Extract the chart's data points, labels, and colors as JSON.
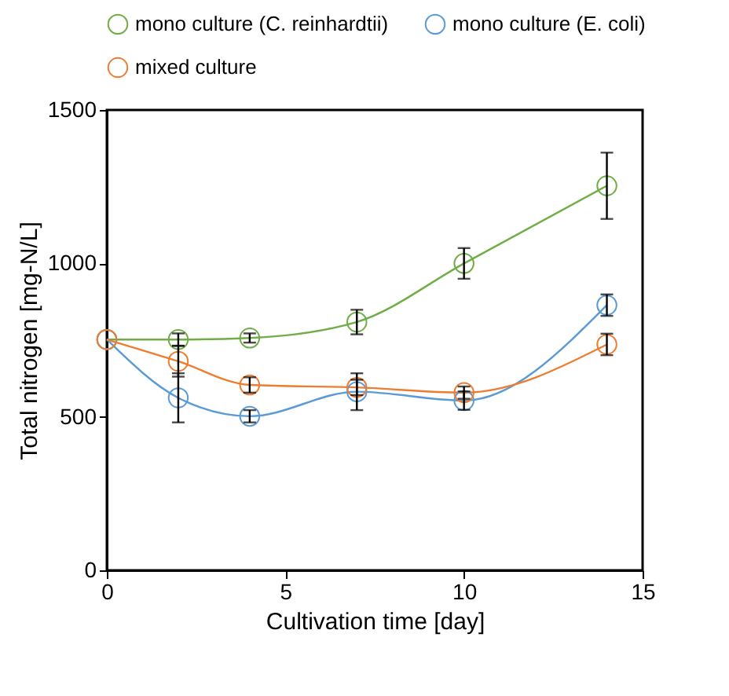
{
  "chart_data": {
    "type": "line",
    "xlabel": "Cultivation time [day]",
    "ylabel": "Total nitrogen [mg-N/L]",
    "xlim": [
      0,
      15
    ],
    "xticks": [
      0,
      5,
      10,
      15
    ],
    "ylim": [
      0,
      1500
    ],
    "yticks": [
      0,
      500,
      1000,
      1500
    ],
    "grid": false,
    "legend": "top",
    "marker": "circle",
    "line_style": "solid",
    "x": [
      0,
      2,
      4,
      7,
      10,
      14
    ],
    "series": [
      {
        "name": "mono culture (C. reinhardtii)",
        "color": "#70ad47",
        "values": [
          752,
          752,
          757,
          809,
          1000,
          1253
        ],
        "errors": [
          null,
          20,
          15,
          40,
          50,
          108
        ]
      },
      {
        "name": "mono culture (E. coli)",
        "color": "#5b9bd5",
        "values": [
          752,
          562,
          502,
          582,
          553,
          864
        ],
        "errors": [
          null,
          80,
          20,
          60,
          30,
          35
        ]
      },
      {
        "name": "mixed culture",
        "color": "#ed7d31",
        "values": [
          752,
          681,
          604,
          596,
          579,
          736
        ],
        "errors": [
          null,
          50,
          25,
          25,
          20,
          35
        ]
      }
    ]
  }
}
